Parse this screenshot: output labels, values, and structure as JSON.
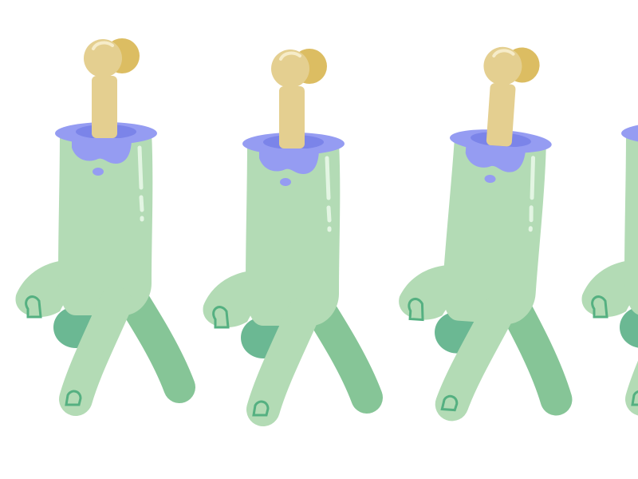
{
  "scene": {
    "subject": "zombie-hand-walk-cycle",
    "frame_count_visible": 5,
    "background": "#ffffff"
  },
  "palette": {
    "skin_light": "#b3dbb5",
    "skin_mid": "#86c597",
    "skin_dark": "#6bb893",
    "highlight": "#e3f5e3",
    "nail_stroke": "#55b081",
    "wound_dark": "#7b84e9",
    "wound_light": "#959cf2",
    "bone_main": "#e4cf90",
    "bone_shadow": "#dcbd62",
    "bone_shine": "#f6ecc9"
  }
}
